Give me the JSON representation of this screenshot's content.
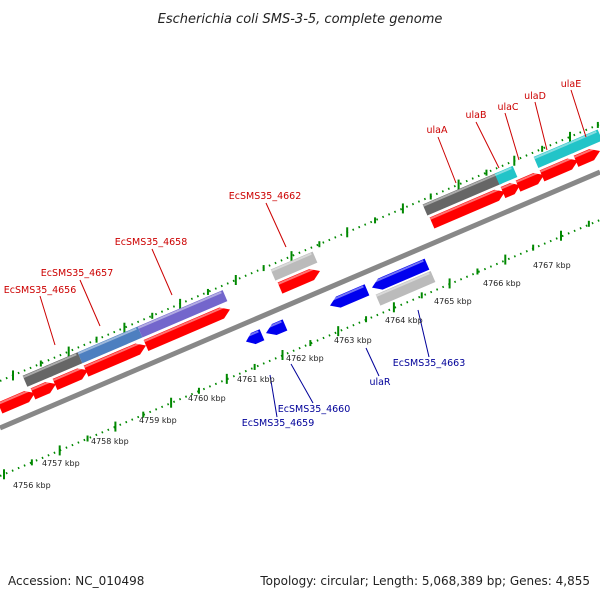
{
  "title": "Escherichia coli SMS-3-5, complete genome",
  "footer": {
    "accession": "Accession: NC_010498",
    "summary": "Topology: circular; Length: 5,068,389 bp; Genes: 4,855"
  },
  "colors": {
    "forward_label": "#cc0000",
    "reverse_label": "#000099",
    "cds": "#ff0000",
    "cds_reverse": "#0000ee",
    "backbone": "#888888",
    "tick": "#008800",
    "tick_label": "#222222"
  },
  "tick_labels": [
    "4756 kbp",
    "4757 kbp",
    "4758 kbp",
    "4759 kbp",
    "4760 kbp",
    "4761 kbp",
    "4762 kbp",
    "4763 kbp",
    "4764 kbp",
    "4765 kbp",
    "4766 kbp",
    "4767 kbp"
  ],
  "forward_labels": [
    "EcSMS35_4656",
    "EcSMS35_4657",
    "EcSMS35_4658",
    "EcSMS35_4662",
    "ulaA",
    "ulaB",
    "ulaC",
    "ulaD",
    "ulaE"
  ],
  "reverse_labels": [
    "EcSMS35_4659",
    "EcSMS35_4660",
    "ulaR",
    "EcSMS35_4663"
  ]
}
